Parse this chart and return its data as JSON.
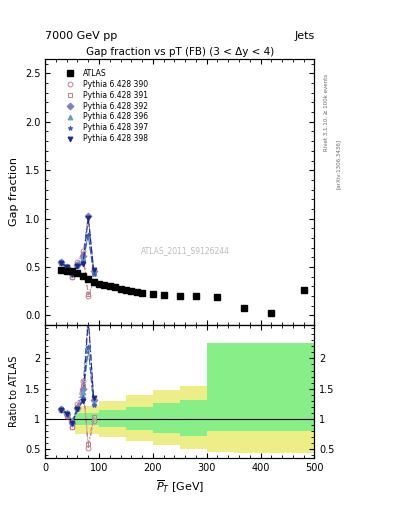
{
  "title_top_left": "7000 GeV pp",
  "title_top_right": "Jets",
  "main_title": "Gap fraction vs pT (FB) (3 < Δy < 4)",
  "watermark": "ATLAS_2011_S9126244",
  "right_label_top": "Rivet 3.1.10, ≥ 100k events",
  "right_label_bottom": "[arXiv:1306.3436]",
  "xlabel": "$\\overline{P}_T$ [GeV]",
  "ylabel_main": "Gap fraction",
  "ylabel_ratio": "Ratio to ATLAS",
  "atlas_x": [
    30,
    40,
    50,
    60,
    70,
    80,
    90,
    100,
    110,
    120,
    130,
    140,
    150,
    160,
    170,
    180,
    200,
    220,
    250,
    280,
    320,
    370,
    420,
    480
  ],
  "atlas_y": [
    0.47,
    0.46,
    0.46,
    0.44,
    0.41,
    0.38,
    0.35,
    0.32,
    0.31,
    0.3,
    0.29,
    0.27,
    0.26,
    0.25,
    0.24,
    0.23,
    0.22,
    0.21,
    0.2,
    0.2,
    0.19,
    0.08,
    0.03,
    0.26
  ],
  "mc_x": [
    30,
    40,
    50,
    60,
    70,
    80,
    90
  ],
  "p390_y": [
    0.54,
    0.48,
    0.4,
    0.55,
    0.67,
    0.2,
    0.34
  ],
  "p391_y": [
    0.54,
    0.48,
    0.4,
    0.53,
    0.63,
    0.22,
    0.36
  ],
  "p392_y": [
    0.55,
    0.5,
    0.43,
    0.52,
    0.61,
    1.03,
    0.46
  ],
  "p396_y": [
    0.55,
    0.51,
    0.45,
    0.52,
    0.59,
    0.83,
    0.44
  ],
  "p397_y": [
    0.54,
    0.5,
    0.43,
    0.51,
    0.55,
    0.83,
    0.43
  ],
  "p398_y": [
    0.54,
    0.5,
    0.43,
    0.51,
    0.53,
    1.01,
    0.47
  ],
  "color_390": "#c080a0",
  "color_391": "#c08080",
  "color_392": "#8080c0",
  "color_396": "#60a0c0",
  "color_397": "#4060b0",
  "color_398": "#202880",
  "marker_390": "o",
  "marker_391": "s",
  "marker_392": "D",
  "marker_396": "^",
  "marker_397": "*",
  "marker_398": "v",
  "band_x_edges": [
    55,
    100,
    150,
    200,
    250,
    300,
    350,
    380,
    420,
    500
  ],
  "yellow_lo": [
    0.75,
    0.7,
    0.63,
    0.57,
    0.5,
    0.46,
    0.43,
    0.43,
    0.43
  ],
  "yellow_hi": [
    1.22,
    1.3,
    1.4,
    1.48,
    1.55,
    2.25,
    2.25,
    2.25,
    2.25
  ],
  "green_lo": [
    0.9,
    0.87,
    0.82,
    0.77,
    0.72,
    0.8,
    0.8,
    0.8,
    0.8
  ],
  "green_hi": [
    1.1,
    1.14,
    1.2,
    1.26,
    1.32,
    2.25,
    2.25,
    2.25,
    2.25
  ],
  "xlim": [
    0,
    500
  ],
  "ylim_main": [
    -0.1,
    2.65
  ],
  "ylim_ratio": [
    0.35,
    2.55
  ],
  "yticks_main": [
    0.0,
    0.5,
    1.0,
    1.5,
    2.0,
    2.5
  ],
  "yticks_ratio": [
    0.5,
    1.0,
    1.5,
    2.0
  ],
  "background_color": "#ffffff"
}
